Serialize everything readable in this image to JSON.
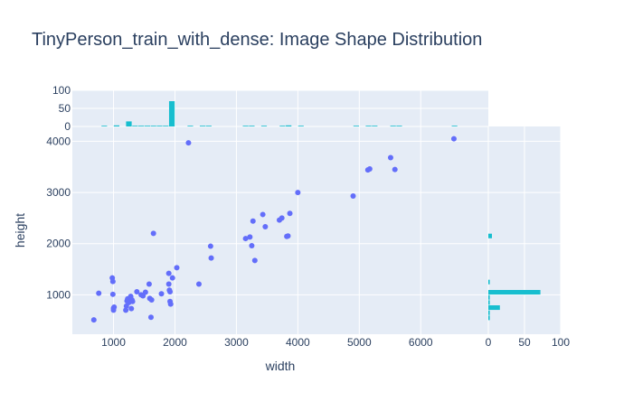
{
  "chart_data": {
    "type": "scatter",
    "title": "TinyPerson_train_with_dense: Image Shape Distribution",
    "xlabel": "width",
    "ylabel": "height",
    "xlim": [
      330,
      7100
    ],
    "ylim": [
      230,
      4290
    ],
    "x_ticks": [
      1000,
      2000,
      3000,
      4000,
      5000,
      6000
    ],
    "y_ticks": [
      1000,
      2000,
      3000,
      4000
    ],
    "marginal_x": {
      "type": "histogram",
      "ylim": [
        0,
        100
      ],
      "ticks": [
        0,
        50,
        100
      ]
    },
    "marginal_y": {
      "type": "histogram",
      "xlim": [
        0,
        100
      ],
      "ticks": [
        0,
        50,
        100
      ]
    },
    "colors": {
      "points": "#636efa",
      "histogram": "#17becf",
      "plot_bg": "#e5ecf6",
      "grid": "#ffffff",
      "text": "#2a3f5f"
    },
    "points": [
      [
        680,
        510
      ],
      [
        760,
        1030
      ],
      [
        980,
        1330
      ],
      [
        990,
        1260
      ],
      [
        990,
        1010
      ],
      [
        1000,
        700
      ],
      [
        1010,
        760
      ],
      [
        1000,
        740
      ],
      [
        1200,
        700
      ],
      [
        1210,
        780
      ],
      [
        1220,
        880
      ],
      [
        1230,
        920
      ],
      [
        1250,
        850
      ],
      [
        1280,
        970
      ],
      [
        1290,
        730
      ],
      [
        1300,
        900
      ],
      [
        1310,
        870
      ],
      [
        1380,
        1060
      ],
      [
        1450,
        1000
      ],
      [
        1480,
        980
      ],
      [
        1520,
        1050
      ],
      [
        1580,
        1210
      ],
      [
        1590,
        930
      ],
      [
        1610,
        560
      ],
      [
        1620,
        900
      ],
      [
        1650,
        2200
      ],
      [
        1780,
        1020
      ],
      [
        1900,
        1210
      ],
      [
        1900,
        1420
      ],
      [
        1910,
        1090
      ],
      [
        1920,
        1060
      ],
      [
        1920,
        870
      ],
      [
        1930,
        820
      ],
      [
        1960,
        1330
      ],
      [
        2030,
        1530
      ],
      [
        2220,
        3970
      ],
      [
        2390,
        1210
      ],
      [
        2580,
        1950
      ],
      [
        2590,
        1720
      ],
      [
        3150,
        2100
      ],
      [
        3220,
        2130
      ],
      [
        3250,
        1960
      ],
      [
        3270,
        2440
      ],
      [
        3300,
        1670
      ],
      [
        3430,
        2570
      ],
      [
        3470,
        2330
      ],
      [
        3700,
        2460
      ],
      [
        3740,
        2500
      ],
      [
        3820,
        2140
      ],
      [
        3840,
        2150
      ],
      [
        3870,
        2590
      ],
      [
        4000,
        3000
      ],
      [
        4900,
        2930
      ],
      [
        5140,
        3440
      ],
      [
        5170,
        3460
      ],
      [
        5510,
        3680
      ],
      [
        5580,
        3450
      ],
      [
        6540,
        4050
      ]
    ],
    "x_hist": [
      {
        "bin": 850,
        "count": 2
      },
      {
        "bin": 1050,
        "count": 3
      },
      {
        "bin": 1250,
        "count": 14
      },
      {
        "bin": 1350,
        "count": 2
      },
      {
        "bin": 1450,
        "count": 2
      },
      {
        "bin": 1550,
        "count": 2
      },
      {
        "bin": 1650,
        "count": 2
      },
      {
        "bin": 1750,
        "count": 2
      },
      {
        "bin": 1850,
        "count": 2
      },
      {
        "bin": 1950,
        "count": 70
      },
      {
        "bin": 2250,
        "count": 2
      },
      {
        "bin": 2450,
        "count": 2
      },
      {
        "bin": 2550,
        "count": 2
      },
      {
        "bin": 3150,
        "count": 2
      },
      {
        "bin": 3250,
        "count": 2
      },
      {
        "bin": 3450,
        "count": 2
      },
      {
        "bin": 3750,
        "count": 2
      },
      {
        "bin": 3850,
        "count": 3
      },
      {
        "bin": 4050,
        "count": 2
      },
      {
        "bin": 4950,
        "count": 2
      },
      {
        "bin": 5150,
        "count": 2
      },
      {
        "bin": 5250,
        "count": 2
      },
      {
        "bin": 5550,
        "count": 2
      },
      {
        "bin": 5650,
        "count": 2
      },
      {
        "bin": 6550,
        "count": 2
      }
    ],
    "y_hist": [
      {
        "bin": 550,
        "count": 2
      },
      {
        "bin": 650,
        "count": 2
      },
      {
        "bin": 750,
        "count": 16
      },
      {
        "bin": 850,
        "count": 2
      },
      {
        "bin": 950,
        "count": 2
      },
      {
        "bin": 1050,
        "count": 72
      },
      {
        "bin": 1250,
        "count": 2
      },
      {
        "bin": 2150,
        "count": 5
      }
    ]
  }
}
